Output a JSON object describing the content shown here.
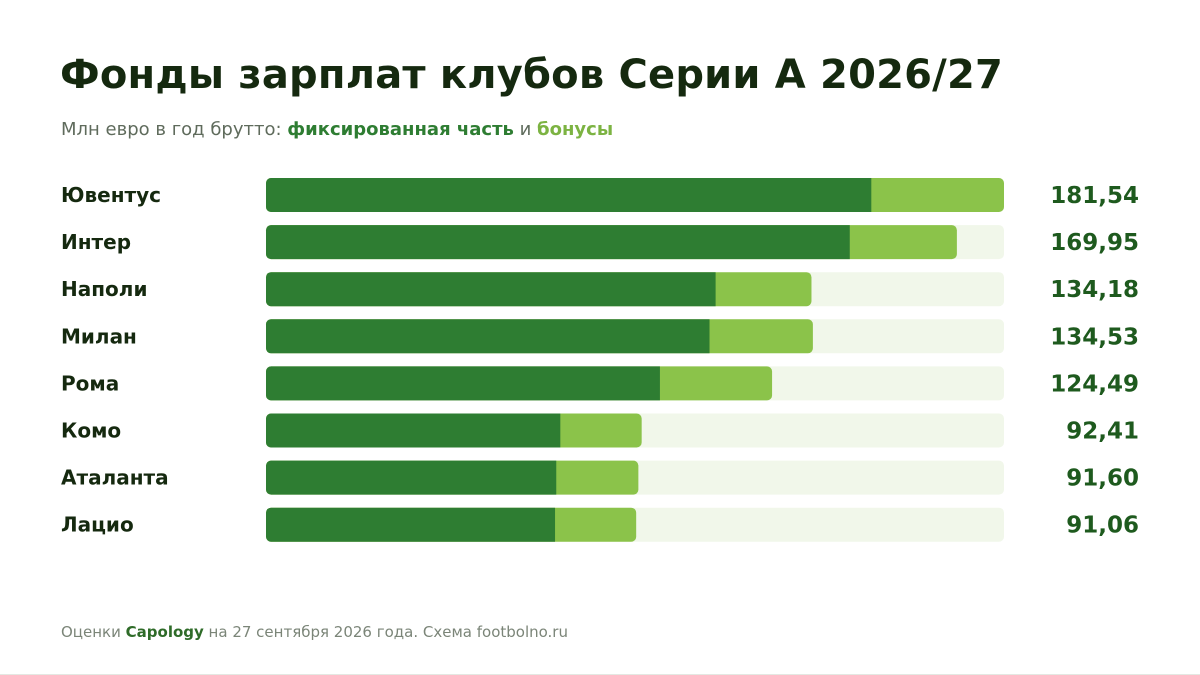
{
  "header": {
    "title": "Фонды зарплат клубов Серии А 2026/27",
    "subtitle_prefix": "Млн евро в год брутто: ",
    "subtitle_fixed": "фиксированная часть",
    "subtitle_and": " и ",
    "subtitle_bonus": "бонусы"
  },
  "footer": {
    "prefix": "Оценки ",
    "source": "Capology",
    "suffix": " на 27 сентября 2026 года. Схема footbolno.ru"
  },
  "colors": {
    "fixed": "#2e7d32",
    "bonus": "#8bc34a",
    "track": "#f1f7ea",
    "label": "#15290f",
    "value": "#1e5a1e"
  },
  "chart_data": {
    "type": "bar",
    "orientation": "horizontal",
    "stacked": true,
    "xlim": [
      0,
      181.54
    ],
    "categories": [
      "Ювентус",
      "Интер",
      "Наполи",
      "Милан",
      "Рома",
      "Комо",
      "Аталанта",
      "Лацио"
    ],
    "series": [
      {
        "name": "фиксированная часть",
        "values": [
          148.9,
          143.6,
          110.6,
          109.1,
          96.9,
          72.4,
          71.4,
          71.1
        ]
      },
      {
        "name": "бонусы",
        "values": [
          32.64,
          26.35,
          23.58,
          25.43,
          27.59,
          20.01,
          20.2,
          19.96
        ]
      }
    ],
    "totals": [
      "181,54",
      "169,95",
      "134,18",
      "134,53",
      "124,49",
      "92,41",
      "91,60",
      "91,06"
    ],
    "legend": "subtitle",
    "grid": false
  }
}
